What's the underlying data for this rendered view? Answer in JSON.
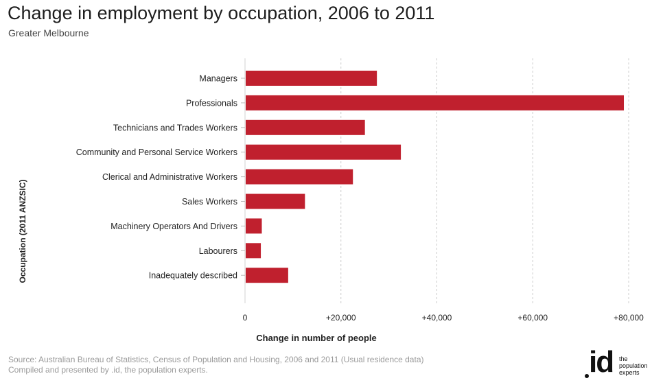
{
  "header": {
    "title": "Change in employment by occupation, 2006 to 2011",
    "subtitle": "Greater Melbourne"
  },
  "footer": {
    "source": "Source: Australian Bureau of Statistics, Census of Population and Housing, 2006 and 2011 (Usual residence data)",
    "compiled": "Compiled and presented by .id, the population experts."
  },
  "logo": {
    "mark": "id",
    "tag_lines": [
      "the",
      "population",
      "experts"
    ]
  },
  "colors": {
    "bar": "#c0202e",
    "grid": "#cccccc",
    "text": "#222222"
  },
  "chart_data": {
    "type": "bar",
    "orientation": "horizontal",
    "categories": [
      "Managers",
      "Professionals",
      "Technicians and Trades Workers",
      "Community and Personal Service Workers",
      "Clerical and Administrative Workers",
      "Sales Workers",
      "Machinery Operators And Drivers",
      "Labourers",
      "Inadequately described"
    ],
    "values": [
      27500,
      79000,
      25000,
      32500,
      22500,
      12500,
      3500,
      3300,
      9000
    ],
    "xlabel": "Change in number of people",
    "ylabel": "Occupation (2011 ANZSIC)",
    "xlim": [
      0,
      80000
    ],
    "xticks": [
      0,
      20000,
      40000,
      60000,
      80000
    ],
    "xtick_labels": [
      "0",
      "+20,000",
      "+40,000",
      "+60,000",
      "+80,000"
    ],
    "grid": "vertical-dashed",
    "legend": "none"
  }
}
